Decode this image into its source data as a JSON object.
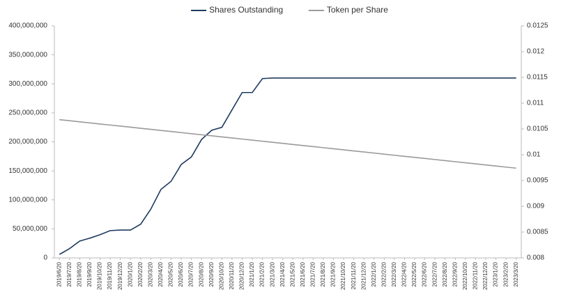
{
  "chart_data": {
    "type": "line",
    "categories": [
      "2019/6/20",
      "2019/7/20",
      "2019/8/20",
      "2019/9/20",
      "2019/10/20",
      "2019/11/20",
      "2019/12/20",
      "2020/1/20",
      "2020/2/20",
      "2020/3/20",
      "2020/4/20",
      "2020/5/20",
      "2020/6/20",
      "2020/7/20",
      "2020/8/20",
      "2020/9/20",
      "2020/10/20",
      "2020/11/20",
      "2020/12/20",
      "2021/1/20",
      "2021/2/20",
      "2021/3/20",
      "2021/4/20",
      "2021/5/20",
      "2021/6/20",
      "2021/7/20",
      "2021/8/20",
      "2021/9/20",
      "2021/10/20",
      "2021/11/20",
      "2021/12/20",
      "2022/1/20",
      "2022/2/20",
      "2022/3/20",
      "2022/4/20",
      "2022/5/20",
      "2022/6/20",
      "2022/7/20",
      "2022/8/20",
      "2022/9/20",
      "2022/10/20",
      "2022/11/20",
      "2022/12/20",
      "2023/1/20",
      "2023/2/20",
      "2023/3/20"
    ],
    "series": [
      {
        "name": "Shares Outstanding",
        "color": "#1f3a5f",
        "values": [
          6000000,
          16000000,
          29000000,
          34000000,
          40000000,
          47000000,
          48000000,
          48000000,
          58000000,
          84000000,
          118000000,
          132000000,
          161000000,
          174000000,
          204000000,
          220000000,
          225000000,
          255000000,
          285000000,
          285000000,
          309000000,
          310000000,
          310000000,
          310000000,
          310000000,
          310000000,
          310000000,
          310000000,
          310000000,
          310000000,
          310000000,
          310000000,
          310000000,
          310000000,
          310000000,
          310000000,
          310000000,
          310000000,
          310000000,
          310000000,
          310000000,
          310000000,
          310000000,
          310000000,
          310000000,
          310000000
        ]
      },
      {
        "name": "Token per Share",
        "color": "#9a9a9a",
        "axis": "y2",
        "values": [
          0.01068,
          0.010659,
          0.010638,
          0.010617,
          0.010596,
          0.010576,
          0.010555,
          0.010534,
          0.010513,
          0.010492,
          0.010471,
          0.01045,
          0.010429,
          0.010408,
          0.010387,
          0.010367,
          0.010346,
          0.010325,
          0.010304,
          0.010283,
          0.010262,
          0.010241,
          0.01022,
          0.010199,
          0.010178,
          0.010158,
          0.010137,
          0.010116,
          0.010095,
          0.010074,
          0.010053,
          0.010032,
          0.010011,
          0.00999,
          0.009969,
          0.009949,
          0.009928,
          0.009907,
          0.009886,
          0.009865,
          0.009844,
          0.009823,
          0.009802,
          0.009781,
          0.00976,
          0.00974
        ]
      }
    ],
    "ylim": [
      0,
      400000000
    ],
    "yticks": [
      {
        "value": 0,
        "label": "0"
      },
      {
        "value": 50000000,
        "label": "50,000,000"
      },
      {
        "value": 100000000,
        "label": "100,000,000"
      },
      {
        "value": 150000000,
        "label": "150,000,000"
      },
      {
        "value": 200000000,
        "label": "200,000,000"
      },
      {
        "value": 250000000,
        "label": "250,000,000"
      },
      {
        "value": 300000000,
        "label": "300,000,000"
      },
      {
        "value": 350000000,
        "label": "350,000,000"
      },
      {
        "value": 400000000,
        "label": "400,000,000"
      }
    ],
    "y2lim": [
      0.008,
      0.0125
    ],
    "y2ticks": [
      0.008,
      0.0085,
      0.009,
      0.0095,
      0.01,
      0.0105,
      0.011,
      0.0115,
      0.012,
      0.0125
    ],
    "legend": "top",
    "grid": false
  }
}
